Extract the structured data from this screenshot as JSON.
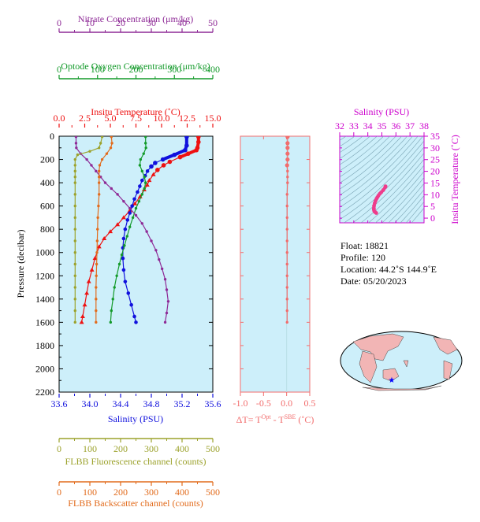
{
  "colors": {
    "nitrate": "#8e2a96",
    "oxygen": "#139a2a",
    "temperature": "#ee1111",
    "salinity": "#1010dd",
    "fluorescence": "#9ca22c",
    "backscatter": "#e26b1c",
    "delta_t": "#f26d6d",
    "panel_bg": "#cdeffa",
    "ts_point": "#ee3d8c",
    "ts_axis": "#cc00cc"
  },
  "info": {
    "float": "Float:  18821",
    "profile": "Profile:  120",
    "location": "Location:  44.2˚S  144.9˚E",
    "date": "Date:  05/20/2023"
  },
  "chart_data": [
    {
      "type": "line",
      "pressure_label": "Pressure (decibar)",
      "pressure_ylim": [
        2200,
        0
      ],
      "pressure_ticks": [
        "0",
        "200",
        "400",
        "600",
        "800",
        "1000",
        "1200",
        "1400",
        "1600",
        "1800",
        "2000",
        "2200"
      ],
      "axes": {
        "nitrate": {
          "label": "Nitrate Concentration (μm/kg)",
          "range": [
            0,
            50
          ],
          "ticks": [
            "0",
            "10",
            "20",
            "30",
            "40",
            "50"
          ]
        },
        "oxygen": {
          "label": "Optode Oxygen Concentration (μm/kg)",
          "range": [
            0,
            400
          ],
          "ticks": [
            "0",
            "100",
            "200",
            "300",
            "400"
          ]
        },
        "temperature": {
          "label": "Insitu Temperature (˚C)",
          "range": [
            0,
            15
          ],
          "ticks": [
            "0.0",
            "2.5",
            "5.0",
            "7.5",
            "10.0",
            "12.5",
            "15.0"
          ]
        },
        "salinity": {
          "label": "Salinity (PSU)",
          "range": [
            33.6,
            35.6
          ],
          "ticks": [
            "33.6",
            "34.0",
            "34.4",
            "34.8",
            "35.2",
            "35.6"
          ]
        },
        "fluorescence": {
          "label": "FLBB Fluorescence channel (counts)",
          "range": [
            0,
            500
          ],
          "ticks": [
            "0",
            "100",
            "200",
            "300",
            "400",
            "500"
          ]
        },
        "backscatter": {
          "label": "FLBB Backscatter channel (counts)",
          "range": [
            0,
            500
          ],
          "ticks": [
            "0",
            "100",
            "200",
            "300",
            "400",
            "500"
          ]
        }
      },
      "series": [
        {
          "name": "Insitu Temperature",
          "axis": "temperature",
          "points": [
            [
              13.6,
              5
            ],
            [
              13.6,
              50
            ],
            [
              13.5,
              100
            ],
            [
              13.4,
              120
            ],
            [
              12.6,
              150
            ],
            [
              11.8,
              180
            ],
            [
              10.8,
              220
            ],
            [
              10.2,
              250
            ],
            [
              9.6,
              290
            ],
            [
              9.2,
              330
            ],
            [
              8.8,
              380
            ],
            [
              8.6,
              420
            ],
            [
              8.3,
              460
            ],
            [
              7.9,
              520
            ],
            [
              7.4,
              580
            ],
            [
              6.9,
              640
            ],
            [
              6.3,
              700
            ],
            [
              5.7,
              760
            ],
            [
              5.0,
              820
            ],
            [
              4.4,
              880
            ],
            [
              3.9,
              950
            ],
            [
              3.5,
              1050
            ],
            [
              3.2,
              1150
            ],
            [
              2.9,
              1250
            ],
            [
              2.7,
              1350
            ],
            [
              2.5,
              1450
            ],
            [
              2.3,
              1550
            ],
            [
              2.2,
              1600
            ]
          ]
        },
        {
          "name": "Salinity",
          "axis": "salinity",
          "points": [
            [
              35.26,
              5
            ],
            [
              35.26,
              80
            ],
            [
              35.24,
              120
            ],
            [
              35.1,
              160
            ],
            [
              34.95,
              200
            ],
            [
              34.85,
              230
            ],
            [
              34.8,
              260
            ],
            [
              34.75,
              300
            ],
            [
              34.72,
              340
            ],
            [
              34.68,
              380
            ],
            [
              34.65,
              430
            ],
            [
              34.62,
              480
            ],
            [
              34.58,
              540
            ],
            [
              34.55,
              600
            ],
            [
              34.52,
              660
            ],
            [
              34.49,
              720
            ],
            [
              34.46,
              800
            ],
            [
              34.44,
              880
            ],
            [
              34.43,
              960
            ],
            [
              34.43,
              1050
            ],
            [
              34.44,
              1150
            ],
            [
              34.46,
              1250
            ],
            [
              34.5,
              1350
            ],
            [
              34.54,
              1450
            ],
            [
              34.58,
              1550
            ],
            [
              34.6,
              1600
            ]
          ]
        },
        {
          "name": "Optode Oxygen",
          "axis": "oxygen",
          "points": [
            [
              225,
              5
            ],
            [
              225,
              60
            ],
            [
              226,
              100
            ],
            [
              220,
              150
            ],
            [
              212,
              200
            ],
            [
              210,
              250
            ],
            [
              216,
              300
            ],
            [
              222,
              350
            ],
            [
              225,
              400
            ],
            [
              222,
              450
            ],
            [
              216,
              500
            ],
            [
              208,
              560
            ],
            [
              200,
              620
            ],
            [
              192,
              700
            ],
            [
              184,
              780
            ],
            [
              177,
              860
            ],
            [
              170,
              940
            ],
            [
              163,
              1020
            ],
            [
              157,
              1100
            ],
            [
              150,
              1200
            ],
            [
              144,
              1300
            ],
            [
              140,
              1400
            ],
            [
              136,
              1500
            ],
            [
              134,
              1600
            ]
          ]
        },
        {
          "name": "Nitrate",
          "axis": "nitrate",
          "points": [
            [
              5.5,
              5
            ],
            [
              5.5,
              60
            ],
            [
              5.6,
              100
            ],
            [
              7.0,
              150
            ],
            [
              9.0,
              200
            ],
            [
              10.5,
              250
            ],
            [
              12.0,
              300
            ],
            [
              13.5,
              350
            ],
            [
              15.0,
              400
            ],
            [
              17.0,
              450
            ],
            [
              19.0,
              500
            ],
            [
              21.0,
              560
            ],
            [
              23.0,
              620
            ],
            [
              25.0,
              680
            ],
            [
              27.0,
              750
            ],
            [
              28.5,
              820
            ],
            [
              30.0,
              900
            ],
            [
              31.5,
              980
            ],
            [
              32.5,
              1060
            ],
            [
              33.5,
              1140
            ],
            [
              34.5,
              1230
            ],
            [
              35.0,
              1320
            ],
            [
              35.5,
              1420
            ],
            [
              35.0,
              1520
            ],
            [
              34.5,
              1600
            ]
          ]
        },
        {
          "name": "FLBB Fluorescence",
          "axis": "fluorescence",
          "points": [
            [
              140,
              5
            ],
            [
              135,
              60
            ],
            [
              130,
              100
            ],
            [
              100,
              130
            ],
            [
              60,
              160
            ],
            [
              52,
              200
            ],
            [
              52,
              250
            ],
            [
              52,
              300
            ],
            [
              52,
              350
            ],
            [
              52,
              400
            ],
            [
              52,
              500
            ],
            [
              52,
              600
            ],
            [
              52,
              700
            ],
            [
              52,
              800
            ],
            [
              52,
              900
            ],
            [
              52,
              1000
            ],
            [
              52,
              1100
            ],
            [
              52,
              1200
            ],
            [
              52,
              1300
            ],
            [
              52,
              1400
            ],
            [
              52,
              1500
            ],
            [
              52,
              1600
            ]
          ]
        },
        {
          "name": "FLBB Backscatter",
          "axis": "backscatter",
          "points": [
            [
              170,
              5
            ],
            [
              172,
              60
            ],
            [
              168,
              100
            ],
            [
              155,
              150
            ],
            [
              140,
              200
            ],
            [
              132,
              250
            ],
            [
              130,
              300
            ],
            [
              130,
              350
            ],
            [
              130,
              400
            ],
            [
              130,
              500
            ],
            [
              128,
              600
            ],
            [
              126,
              700
            ],
            [
              125,
              800
            ],
            [
              124,
              900
            ],
            [
              123,
              1000
            ],
            [
              122,
              1100
            ],
            [
              121,
              1200
            ],
            [
              120,
              1300
            ],
            [
              120,
              1400
            ],
            [
              120,
              1500
            ],
            [
              120,
              1600
            ]
          ]
        }
      ]
    },
    {
      "type": "line",
      "xlabel": "ΔT= T",
      "xlabel_sup1": "Opt",
      "xlabel_mid": " - T",
      "xlabel_sup2": "SBE",
      "xlabel_unit": " (˚C)",
      "xlim": [
        -1.0,
        0.5
      ],
      "xticks": [
        "-1.0",
        "-0.5",
        "0.0",
        "0.5"
      ],
      "ylim": [
        2200,
        0
      ],
      "series": [
        {
          "name": "ΔT",
          "points": [
            [
              0.02,
              5
            ],
            [
              0.02,
              60
            ],
            [
              0.02,
              100
            ],
            [
              0.02,
              150
            ],
            [
              0.02,
              200
            ],
            [
              0.01,
              250
            ],
            [
              0.02,
              300
            ],
            [
              0.02,
              350
            ],
            [
              0.02,
              400
            ],
            [
              0.01,
              500
            ],
            [
              0.01,
              600
            ],
            [
              0.01,
              700
            ],
            [
              0.01,
              800
            ],
            [
              0.01,
              900
            ],
            [
              0.01,
              1000
            ],
            [
              0.01,
              1100
            ],
            [
              0.01,
              1200
            ],
            [
              0.01,
              1300
            ],
            [
              0.01,
              1400
            ],
            [
              0.01,
              1500
            ],
            [
              0.01,
              1600
            ]
          ]
        }
      ]
    },
    {
      "type": "scatter",
      "xlabel": "Salinity (PSU)",
      "ylabel": "Insitu Temperature (˚C)",
      "xlim": [
        32,
        38
      ],
      "ylim": [
        -2,
        35
      ],
      "xticks": [
        "32",
        "33",
        "34",
        "35",
        "36",
        "37",
        "38"
      ],
      "yticks": [
        "0",
        "5",
        "10",
        "15",
        "20",
        "25",
        "30",
        "35"
      ],
      "series": [
        {
          "name": "T-S",
          "points": [
            [
              35.26,
              13.6
            ],
            [
              35.24,
              13.2
            ],
            [
              35.1,
              12.0
            ],
            [
              34.95,
              11.0
            ],
            [
              34.85,
              10.4
            ],
            [
              34.75,
              9.6
            ],
            [
              34.68,
              8.9
            ],
            [
              34.62,
              8.3
            ],
            [
              34.55,
              7.4
            ],
            [
              34.49,
              6.4
            ],
            [
              34.44,
              5.2
            ],
            [
              34.43,
              4.2
            ],
            [
              34.43,
              3.6
            ],
            [
              34.46,
              3.0
            ],
            [
              34.5,
              2.7
            ],
            [
              34.54,
              2.5
            ],
            [
              34.6,
              2.2
            ]
          ]
        }
      ]
    }
  ]
}
